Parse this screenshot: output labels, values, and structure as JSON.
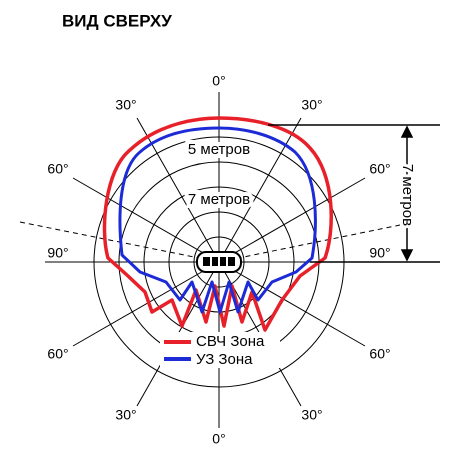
{
  "title": "ВИД СВЕРХУ",
  "angle_labels": [
    "0°",
    "30°",
    "30°",
    "60°",
    "60°",
    "90°",
    "90°",
    "60°",
    "60°",
    "30°",
    "30°",
    "0°"
  ],
  "range_labels": [
    "5 метров",
    "7 метров"
  ],
  "side_label": "7 метров",
  "legend": [
    "СВЧ Зона",
    "УЗ Зона"
  ]
}
